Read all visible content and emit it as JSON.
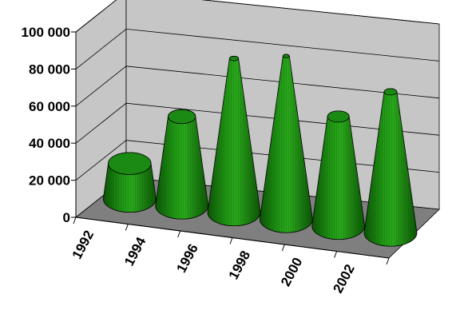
{
  "chart_data": {
    "type": "bar",
    "subtype": "3d-cone",
    "categories": [
      "1992",
      "1994",
      "1996",
      "1998",
      "2000",
      "2002"
    ],
    "values": [
      19000,
      48000,
      83000,
      88000,
      59000,
      76000
    ],
    "ylim": [
      0,
      100000
    ],
    "yticks": [
      "0",
      "20 000",
      "40 000",
      "60 000",
      "80 000",
      "100 000"
    ],
    "grid": true,
    "legend": "none",
    "colors": {
      "cone": "#1e8c12",
      "cone_dark": "#0b4f06",
      "wall": "#c6c6c6",
      "floor": "#7f7f7f"
    }
  }
}
